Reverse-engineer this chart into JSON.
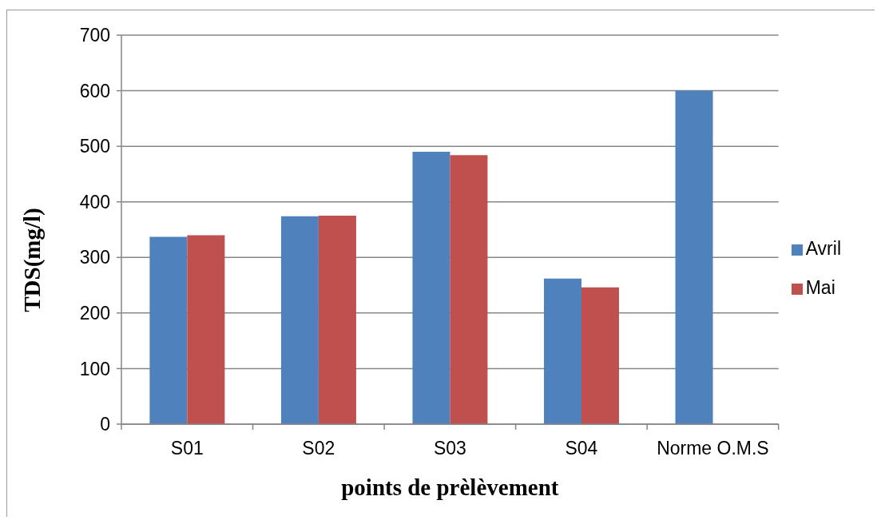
{
  "chart_data": {
    "type": "bar",
    "xlabel": "points de prèlèvement",
    "ylabel": "TDS(mg/l)",
    "categories": [
      "S01",
      "S02",
      "S03",
      "S04",
      "Norme O.M.S"
    ],
    "series": [
      {
        "name": "Avril",
        "color": "#4f81bd",
        "values": [
          337,
          374,
          490,
          262,
          600
        ]
      },
      {
        "name": "Mai",
        "color": "#c0504d",
        "values": [
          340,
          375,
          484,
          246,
          null
        ]
      }
    ],
    "ylim": [
      0,
      700
    ],
    "yticks": [
      0,
      100,
      200,
      300,
      400,
      500,
      600,
      700
    ],
    "grid": "y",
    "legend": "right"
  }
}
